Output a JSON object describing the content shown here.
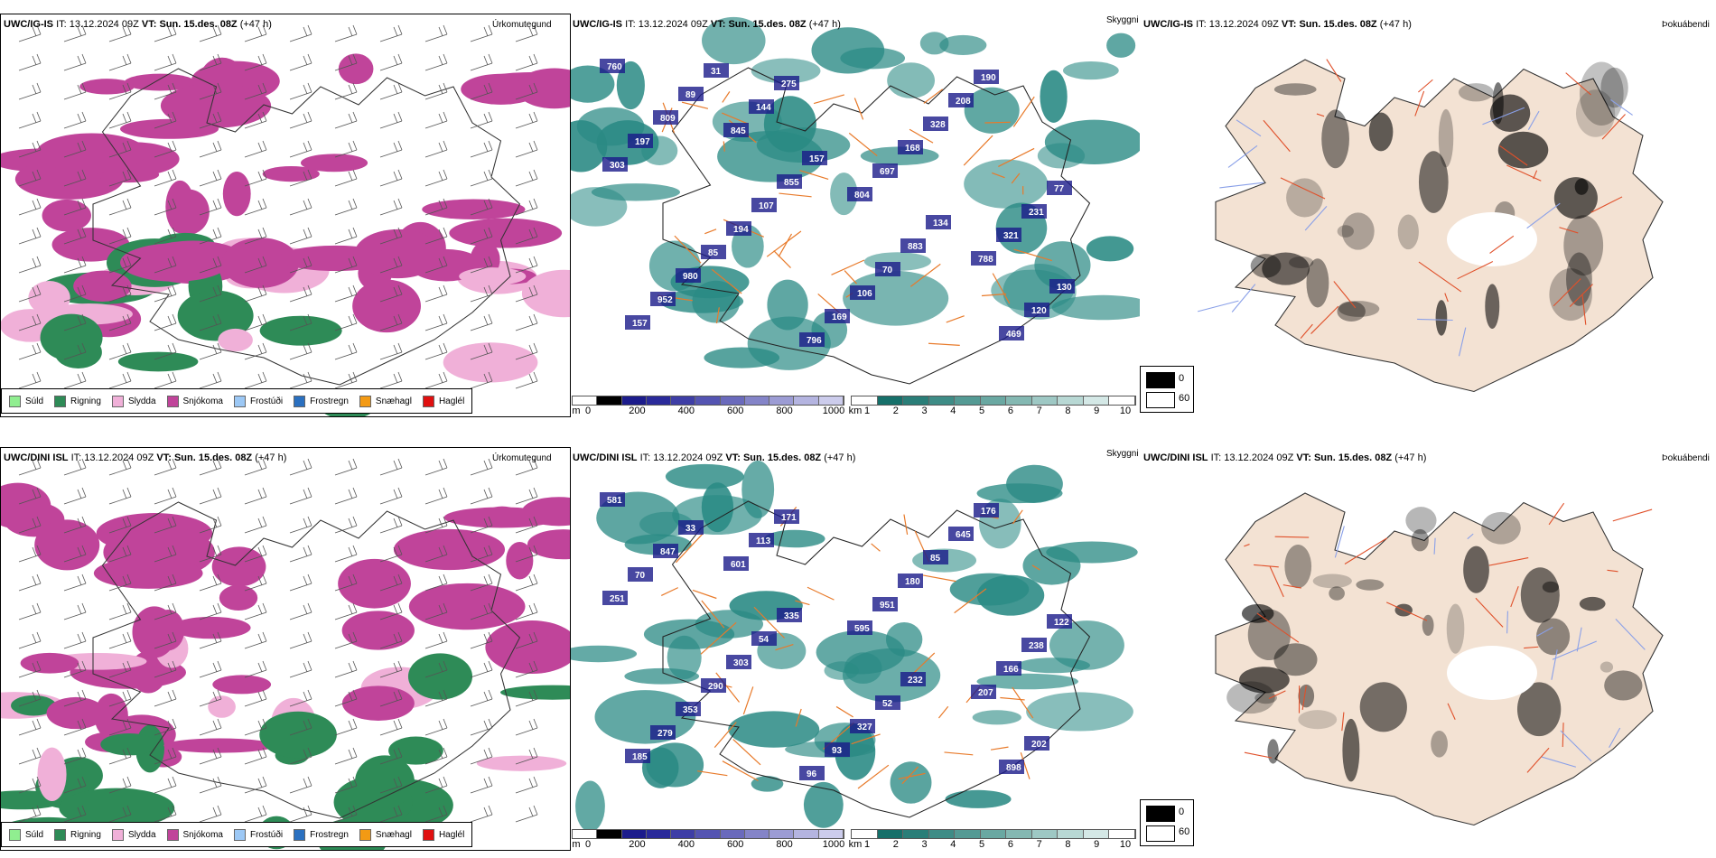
{
  "rows": [
    {
      "model": "UWC/IG-IS",
      "it_label": "IT:",
      "it_value": "13.12.2024 09Z",
      "vt_label": "VT:",
      "vt_value": "Sun. 15.des. 08Z",
      "lead": "(+47 h)",
      "precip_title": "Úrkomutegund",
      "vis_title": "Skyggni",
      "fog_title": "Þokuábendi",
      "cloud_labels": [
        "760",
        "845",
        "804",
        "788",
        "157",
        "144",
        "697",
        "321",
        "952",
        "275",
        "168",
        "231",
        "980",
        "796",
        "328",
        "77",
        "85",
        "169",
        "208",
        "303",
        "194",
        "106",
        "190",
        "197",
        "107",
        "70",
        "469",
        "809",
        "855",
        "883",
        "120",
        "89",
        "157",
        "134",
        "130",
        "31"
      ]
    },
    {
      "model": "UWC/DINI ISL",
      "it_label": "IT:",
      "it_value": "13.12.2024 09Z",
      "vt_label": "VT:",
      "vt_value": "Sun. 15.des. 08Z",
      "lead": "(+47 h)",
      "precip_title": "Úrkomutegund",
      "vis_title": "Skyggni",
      "fog_title": "Þokuábendi",
      "cloud_labels": [
        "581",
        "601",
        "595",
        "207",
        "185",
        "113",
        "951",
        "166",
        "279",
        "171",
        "180",
        "238",
        "353",
        "96",
        "85",
        "122",
        "290",
        "93",
        "645",
        "251",
        "303",
        "327",
        "176",
        "70",
        "54",
        "52",
        "898",
        "847",
        "335",
        "232",
        "202",
        "33"
      ]
    }
  ],
  "precip_legend": [
    {
      "label": "Súld",
      "color": "#90ee90"
    },
    {
      "label": "Rigning",
      "color": "#2e8b57"
    },
    {
      "label": "Slydda",
      "color": "#f0b0d8"
    },
    {
      "label": "Snjókoma",
      "color": "#c0449a"
    },
    {
      "label": "Frostúði",
      "color": "#9cc8f5"
    },
    {
      "label": "Frostregn",
      "color": "#2a70c0"
    },
    {
      "label": "Snæhagl",
      "color": "#f39a14"
    },
    {
      "label": "Haglél",
      "color": "#e01010"
    }
  ],
  "cloudbase_bar": {
    "unit": "m",
    "ticks": [
      "0",
      "200",
      "400",
      "600",
      "800",
      "1000"
    ]
  },
  "visibility_bar": {
    "unit": "km",
    "ticks": [
      "1",
      "2",
      "3",
      "4",
      "5",
      "6",
      "7",
      "8",
      "9",
      "10"
    ]
  },
  "fog_key": {
    "black": "0",
    "white": "60"
  },
  "colors": {
    "snow": "#c0449a",
    "rain": "#2e8b57",
    "sleet": "#f0b0d8",
    "cloud": "#2a8a84",
    "lowcloud": "#1a1a8a",
    "road": "#e87a2a",
    "land": "#f3e2d3"
  }
}
